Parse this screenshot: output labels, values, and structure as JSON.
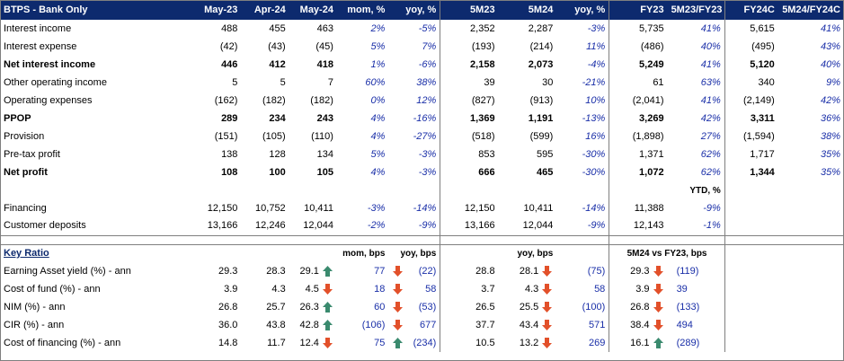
{
  "header": [
    "BTPS - Bank Only",
    "May-23",
    "Apr-24",
    "May-24",
    "mom, %",
    "yoy, %",
    "5M23",
    "5M24",
    "yoy, %",
    "FY23",
    "5M23/FY23",
    "FY24C",
    "5M24/FY24C"
  ],
  "rows": [
    {
      "label": "Interest income",
      "bold": false,
      "c": [
        "488",
        "455",
        "463",
        "2%",
        "-5%",
        "2,352",
        "2,287",
        "-3%",
        "5,735",
        "41%",
        "5,615",
        "41%"
      ]
    },
    {
      "label": "Interest expense",
      "bold": false,
      "c": [
        "(42)",
        "(43)",
        "(45)",
        "5%",
        "7%",
        "(193)",
        "(214)",
        "11%",
        "(486)",
        "40%",
        "(495)",
        "43%"
      ]
    },
    {
      "label": "Net interest income",
      "bold": true,
      "c": [
        "446",
        "412",
        "418",
        "1%",
        "-6%",
        "2,158",
        "2,073",
        "-4%",
        "5,249",
        "41%",
        "5,120",
        "40%"
      ]
    },
    {
      "label": "Other operating income",
      "bold": false,
      "c": [
        "5",
        "5",
        "7",
        "60%",
        "38%",
        "39",
        "30",
        "-21%",
        "61",
        "63%",
        "340",
        "9%"
      ]
    },
    {
      "label": "Operating expenses",
      "bold": false,
      "c": [
        "(162)",
        "(182)",
        "(182)",
        "0%",
        "12%",
        "(827)",
        "(913)",
        "10%",
        "(2,041)",
        "41%",
        "(2,149)",
        "42%"
      ]
    },
    {
      "label": "PPOP",
      "bold": true,
      "c": [
        "289",
        "234",
        "243",
        "4%",
        "-16%",
        "1,369",
        "1,191",
        "-13%",
        "3,269",
        "42%",
        "3,311",
        "36%"
      ]
    },
    {
      "label": "Provision",
      "bold": false,
      "c": [
        "(151)",
        "(105)",
        "(110)",
        "4%",
        "-27%",
        "(518)",
        "(599)",
        "16%",
        "(1,898)",
        "27%",
        "(1,594)",
        "38%"
      ]
    },
    {
      "label": "Pre-tax profit",
      "bold": false,
      "c": [
        "138",
        "128",
        "134",
        "5%",
        "-3%",
        "853",
        "595",
        "-30%",
        "1,371",
        "62%",
        "1,717",
        "35%"
      ]
    },
    {
      "label": "Net profit",
      "bold": true,
      "c": [
        "108",
        "100",
        "105",
        "4%",
        "-3%",
        "666",
        "465",
        "-30%",
        "1,072",
        "62%",
        "1,344",
        "35%"
      ]
    }
  ],
  "ytd_label": "YTD, %",
  "fin_rows": [
    {
      "label": "Financing",
      "c": [
        "12,150",
        "10,752",
        "10,411",
        "-3%",
        "-14%",
        "12,150",
        "10,411",
        "-14%",
        "11,388",
        "-9%"
      ]
    },
    {
      "label": "Customer deposits",
      "c": [
        "13,166",
        "12,246",
        "12,044",
        "-2%",
        "-9%",
        "13,166",
        "12,044",
        "-9%",
        "12,143",
        "-1%"
      ]
    }
  ],
  "ratio_header": {
    "title": "Key Ratio",
    "mom": "mom, bps",
    "yoy": "yoy, bps",
    "yoy2": "yoy, bps",
    "vs": "5M24 vs FY23, bps"
  },
  "ratios": [
    {
      "label": "Earning Asset yield (%) - ann",
      "v1": "29.3",
      "v2": "28.3",
      "v3": "29.1",
      "a1": "up",
      "mom": "77",
      "a2": "down",
      "yoy": "(22)",
      "v4": "28.8",
      "v5": "28.1",
      "a3": "down",
      "yoy2": "(75)",
      "v6": "29.3",
      "a4": "down",
      "vs": "(119)"
    },
    {
      "label": "Cost of fund (%) - ann",
      "v1": "3.9",
      "v2": "4.3",
      "v3": "4.5",
      "a1": "down",
      "mom": "18",
      "a2": "down",
      "yoy": "58",
      "v4": "3.7",
      "v5": "4.3",
      "a3": "down",
      "yoy2": "58",
      "v6": "3.9",
      "a4": "down",
      "vs": "39"
    },
    {
      "label": "NIM (%) - ann",
      "v1": "26.8",
      "v2": "25.7",
      "v3": "26.3",
      "a1": "up",
      "mom": "60",
      "a2": "down",
      "yoy": "(53)",
      "v4": "26.5",
      "v5": "25.5",
      "a3": "down",
      "yoy2": "(100)",
      "v6": "26.8",
      "a4": "down",
      "vs": "(133)"
    },
    {
      "label": "CIR (%) - ann",
      "v1": "36.0",
      "v2": "43.8",
      "v3": "42.8",
      "a1": "up",
      "mom": "(106)",
      "a2": "down",
      "yoy": "677",
      "v4": "37.7",
      "v5": "43.4",
      "a3": "down",
      "yoy2": "571",
      "v6": "38.4",
      "a4": "down",
      "vs": "494"
    },
    {
      "label": "Cost of financing (%) - ann",
      "v1": "14.8",
      "v2": "11.7",
      "v3": "12.4",
      "a1": "down",
      "mom": "75",
      "a2": "up",
      "yoy": "(234)",
      "v4": "10.5",
      "v5": "13.2",
      "a3": "down",
      "yoy2": "269",
      "v6": "16.1",
      "a4": "up",
      "vs": "(289)"
    }
  ],
  "colors": {
    "header_bg": "#0d2a6e",
    "percent": "#1a2fa8",
    "arrow_up": "#3a8a6e",
    "arrow_down": "#e2502a"
  }
}
